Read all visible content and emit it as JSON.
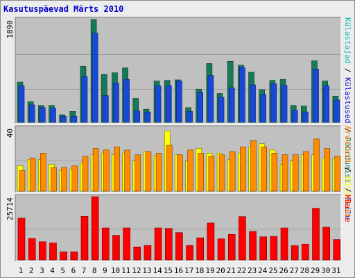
{
  "title": "Kasutuspäevad Märts 2010",
  "right_legend": {
    "top": [
      {
        "text": "Külastajad",
        "color": "#10b8b8"
      },
      {
        "text": " / ",
        "color": "#000000"
      },
      {
        "text": "Külastused",
        "color": "#0000cc"
      },
      {
        "text": " / ",
        "color": "#000000"
      },
      {
        "text": "Pöördumisi",
        "color": "#157a57"
      },
      {
        "text": " / ",
        "color": "#000000"
      },
      {
        "text": "Faile",
        "color": "#1848d8"
      }
    ],
    "middle": [
      {
        "text": "Arvuteid",
        "color": "#ff8000"
      },
      {
        "text": " / ",
        "color": "#000000"
      },
      {
        "text": "Külastusi",
        "color": "#ffff00"
      }
    ],
    "bottom": [
      {
        "text": "KBaite",
        "color": "#ff0000"
      }
    ]
  },
  "colors": {
    "background": "#ececec",
    "panel": "#c0c0c0",
    "hits": "#157a57",
    "files": "#1848d8",
    "visits_top": "#10c8c8",
    "sites": "#ff8c00",
    "visits_mid": "#ffff00",
    "kbytes": "#ff0000",
    "weekend_label": "#2e8b57"
  },
  "chart_data": [
    {
      "type": "bar",
      "title": "Kasutuspäevad Märts 2010",
      "ylabel": "1890",
      "ylim": [
        0,
        1890
      ],
      "categories": [
        "1",
        "2",
        "3",
        "4",
        "5",
        "6",
        "7",
        "8",
        "9",
        "10",
        "11",
        "12",
        "13",
        "14",
        "15",
        "16",
        "17",
        "18",
        "19",
        "20",
        "21",
        "22",
        "23",
        "24",
        "25",
        "26",
        "27",
        "28",
        "29",
        "30",
        "31"
      ],
      "weekend": [
        "6",
        "7",
        "13",
        "14",
        "20",
        "21",
        "27",
        "28"
      ],
      "series": [
        {
          "name": "Pöördumisi",
          "values": [
            740,
            380,
            310,
            310,
            140,
            200,
            1030,
            1890,
            880,
            910,
            1000,
            440,
            240,
            760,
            770,
            780,
            270,
            610,
            1080,
            530,
            1120,
            1050,
            920,
            600,
            770,
            790,
            310,
            300,
            1130,
            760,
            480
          ]
        },
        {
          "name": "Faile",
          "values": [
            670,
            320,
            270,
            260,
            110,
            110,
            840,
            1640,
            490,
            720,
            790,
            210,
            190,
            670,
            670,
            760,
            200,
            550,
            860,
            460,
            630,
            1010,
            690,
            510,
            710,
            680,
            220,
            190,
            980,
            670,
            410
          ]
        },
        {
          "name": "Külastused",
          "values": [
            34,
            31,
            29,
            30,
            25,
            27,
            33,
            36,
            33,
            34,
            35,
            29,
            29,
            33,
            32,
            34,
            28,
            33,
            34,
            32,
            35,
            36,
            33,
            33,
            34,
            33,
            28,
            29,
            36,
            33,
            31
          ]
        }
      ]
    },
    {
      "type": "bar",
      "ylabel": "40",
      "ylim": [
        0,
        40
      ],
      "categories": [
        "1",
        "2",
        "3",
        "4",
        "5",
        "6",
        "7",
        "8",
        "9",
        "10",
        "11",
        "12",
        "13",
        "14",
        "15",
        "16",
        "17",
        "18",
        "19",
        "20",
        "21",
        "22",
        "23",
        "24",
        "25",
        "26",
        "27",
        "28",
        "29",
        "30",
        "31"
      ],
      "series": [
        {
          "name": "Külastusi",
          "values": [
            16,
            20,
            20,
            17,
            13,
            14,
            18,
            23,
            24,
            23,
            24,
            19,
            25,
            22,
            38,
            23,
            19,
            27,
            24,
            24,
            20,
            24,
            28,
            30,
            26,
            17,
            19,
            23,
            23,
            21,
            21
          ]
        },
        {
          "name": "Arvuteid",
          "values": [
            13,
            21,
            24,
            15,
            15,
            16,
            22,
            27,
            26,
            28,
            26,
            23,
            25,
            24,
            29,
            23,
            26,
            24,
            22,
            23,
            25,
            28,
            32,
            28,
            24,
            23,
            23,
            25,
            33,
            27,
            22
          ]
        }
      ]
    },
    {
      "type": "bar",
      "ylabel": "25714",
      "ylim": [
        0,
        25714
      ],
      "categories": [
        "1",
        "2",
        "3",
        "4",
        "5",
        "6",
        "7",
        "8",
        "9",
        "10",
        "11",
        "12",
        "13",
        "14",
        "15",
        "16",
        "17",
        "18",
        "19",
        "20",
        "21",
        "22",
        "23",
        "24",
        "25",
        "26",
        "27",
        "28",
        "29",
        "30",
        "31"
      ],
      "series": [
        {
          "name": "KBaite",
          "values": [
            17000,
            8700,
            7400,
            6900,
            3300,
            3300,
            17700,
            25714,
            13000,
            10000,
            13000,
            5300,
            5900,
            13000,
            12800,
            11100,
            5900,
            9000,
            15000,
            8600,
            10400,
            17600,
            11600,
            9400,
            9600,
            13000,
            5800,
            6400,
            21000,
            13300,
            8300
          ]
        }
      ]
    }
  ]
}
